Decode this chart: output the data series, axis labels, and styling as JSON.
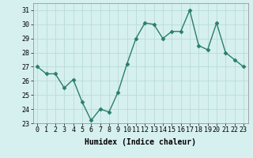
{
  "x": [
    0,
    1,
    2,
    3,
    4,
    5,
    6,
    7,
    8,
    9,
    10,
    11,
    12,
    13,
    14,
    15,
    16,
    17,
    18,
    19,
    20,
    21,
    22,
    23
  ],
  "y": [
    27.0,
    26.5,
    26.5,
    25.5,
    26.1,
    24.5,
    23.2,
    24.0,
    23.8,
    25.2,
    27.2,
    29.0,
    30.1,
    30.0,
    29.0,
    29.5,
    29.5,
    31.0,
    28.5,
    28.2,
    30.1,
    28.0,
    27.5,
    27.0
  ],
  "xlabel": "Humidex (Indice chaleur)",
  "ylim": [
    23,
    31.5
  ],
  "xlim": [
    -0.5,
    23.5
  ],
  "yticks": [
    23,
    24,
    25,
    26,
    27,
    28,
    29,
    30,
    31
  ],
  "xticks": [
    0,
    1,
    2,
    3,
    4,
    5,
    6,
    7,
    8,
    9,
    10,
    11,
    12,
    13,
    14,
    15,
    16,
    17,
    18,
    19,
    20,
    21,
    22,
    23
  ],
  "line_color": "#2a7d6e",
  "marker": "D",
  "marker_size": 2.5,
  "line_width": 1.0,
  "bg_color": "#d6f0ef",
  "grid_color": "#b8dbd9",
  "tick_fontsize": 6,
  "label_fontsize": 7
}
